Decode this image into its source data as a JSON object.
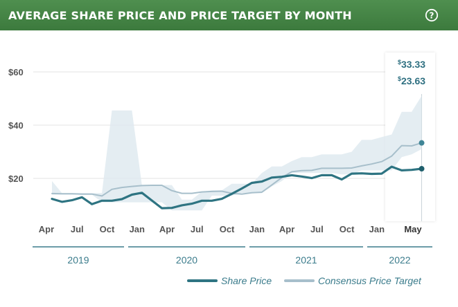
{
  "header": {
    "title": "AVERAGE SHARE PRICE AND PRICE TARGET BY MONTH",
    "help_icon": "help-circle-icon"
  },
  "colors": {
    "header_bg": "#3f7d40",
    "share_price": "#2e7482",
    "price_target": "#a7bfcb",
    "range_band": "#dde9ef",
    "axis_text": "#555555",
    "year_text": "#3a7b8b"
  },
  "chart_data": {
    "type": "line",
    "title": "AVERAGE SHARE PRICE AND PRICE TARGET BY MONTH",
    "x_tick_labels": [
      "Apr",
      "Jul",
      "Oct",
      "Jan",
      "Apr",
      "Jul",
      "Oct",
      "Jan",
      "Apr",
      "Jul",
      "Oct",
      "Jan",
      "May"
    ],
    "year_labels": [
      "2019",
      "2020",
      "2021",
      "2022"
    ],
    "y_tick_labels": [
      "$20",
      "$40",
      "$60"
    ],
    "ylim": [
      0,
      70
    ],
    "x": [
      "Apr 2019",
      "May 2019",
      "Jun 2019",
      "Jul 2019",
      "Aug 2019",
      "Sep 2019",
      "Oct 2019",
      "Nov 2019",
      "Dec 2019",
      "Jan 2020",
      "Feb 2020",
      "Mar 2020",
      "Apr 2020",
      "May 2020",
      "Jun 2020",
      "Jul 2020",
      "Aug 2020",
      "Sep 2020",
      "Oct 2020",
      "Nov 2020",
      "Dec 2020",
      "Jan 2021",
      "Feb 2021",
      "Mar 2021",
      "Apr 2021",
      "May 2021",
      "Jun 2021",
      "Jul 2021",
      "Aug 2021",
      "Sep 2021",
      "Oct 2021",
      "Nov 2021",
      "Dec 2021",
      "Jan 2022",
      "Feb 2022",
      "Mar 2022",
      "Apr 2022",
      "May 2022"
    ],
    "series": [
      {
        "name": "Share Price",
        "values": [
          12.3,
          11.2,
          11.8,
          12.9,
          10.3,
          11.6,
          11.6,
          12.2,
          13.9,
          14.6,
          11.7,
          8.8,
          8.9,
          9.9,
          10.5,
          11.6,
          11.6,
          12.3,
          14.2,
          16.2,
          18.3,
          18.8,
          20.3,
          20.6,
          21.2,
          20.7,
          20.1,
          21.2,
          21.2,
          19.6,
          21.8,
          21.9,
          21.7,
          21.8,
          24.4,
          23.0,
          23.2,
          23.63
        ]
      },
      {
        "name": "Consensus Price Target",
        "values": [
          14.3,
          14.2,
          14.2,
          14.1,
          14.1,
          13.4,
          15.9,
          16.6,
          17.0,
          17.3,
          17.4,
          17.4,
          15.4,
          14.4,
          14.4,
          14.9,
          15.1,
          15.2,
          14.4,
          14.1,
          14.6,
          14.8,
          17.5,
          20.3,
          22.5,
          22.9,
          23.0,
          23.8,
          23.8,
          23.8,
          23.9,
          24.7,
          25.4,
          26.3,
          28.4,
          32.3,
          32.2,
          33.33
        ]
      }
    ],
    "range_band": {
      "low": [
        13.9,
        13.9,
        13.9,
        13.9,
        13.9,
        11.0,
        11.0,
        11.0,
        11.0,
        11.0,
        11.0,
        11.0,
        8.0,
        8.0,
        8.0,
        8.0,
        13.5,
        13.5,
        13.5,
        14.5,
        14.5,
        14.5,
        17.0,
        19.0,
        22.0,
        22.0,
        22.0,
        22.0,
        22.0,
        21.5,
        21.5,
        23.0,
        23.0,
        23.0,
        23.0,
        28.0,
        29.0,
        31.0
      ],
      "high": [
        19.0,
        14.5,
        14.5,
        14.5,
        14.5,
        14.5,
        45.5,
        45.5,
        45.5,
        17.5,
        17.5,
        17.5,
        17.5,
        12.0,
        12.0,
        15.0,
        15.5,
        15.5,
        18.0,
        18.0,
        18.0,
        22.0,
        24.5,
        24.5,
        26.5,
        28.0,
        28.0,
        29.0,
        29.0,
        29.0,
        30.0,
        34.5,
        34.5,
        35.5,
        36.5,
        45.0,
        45.0,
        51.0
      ]
    },
    "tooltip": {
      "price_target": "$33.33",
      "share_price": "$23.63"
    },
    "legend": {
      "position": "bottom-right",
      "entries": [
        "Share Price",
        "Consensus Price Target"
      ]
    },
    "grid": true
  }
}
